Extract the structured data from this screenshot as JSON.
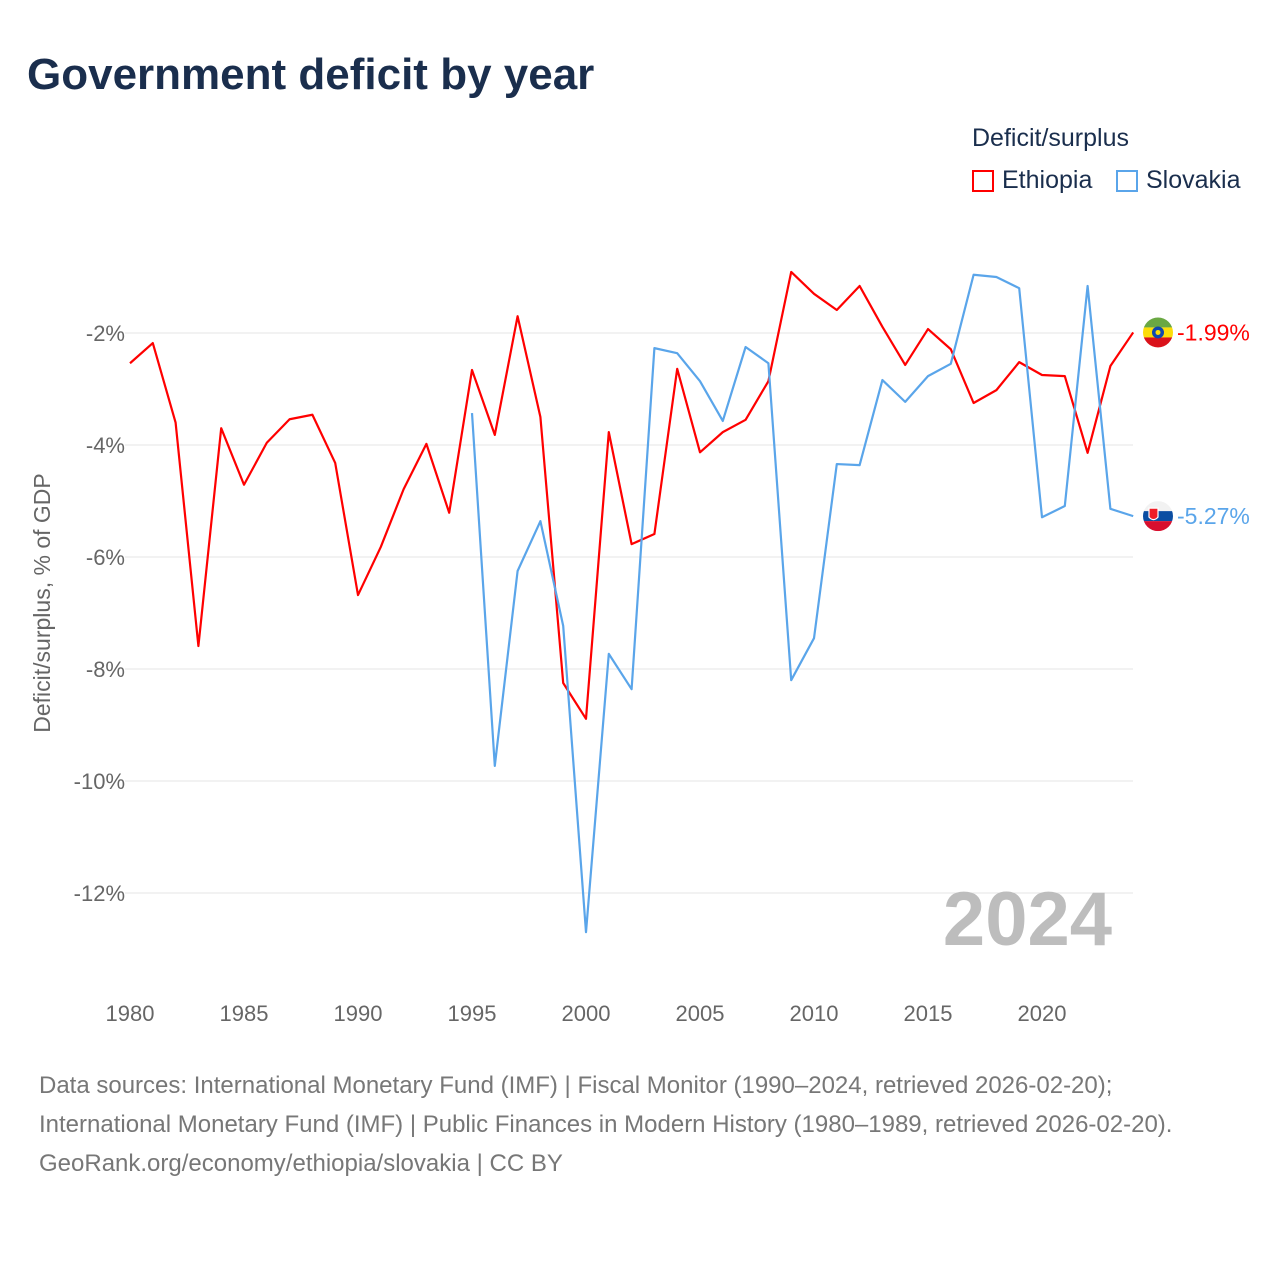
{
  "title": "Government deficit by year",
  "legend": {
    "title": "Deficit/surplus",
    "items": [
      {
        "label": "Ethiopia",
        "color": "#ff0000"
      },
      {
        "label": "Slovakia",
        "color": "#5aa5ea"
      }
    ]
  },
  "chart_data": {
    "type": "line",
    "title": "Government deficit by year",
    "ylabel": "Deficit/surplus, % of GDP",
    "xlabel": "",
    "xlim": [
      1980,
      2024
    ],
    "ylim": [
      -13.5,
      -0.5
    ],
    "x_ticks": [
      1980,
      1985,
      1990,
      1995,
      2000,
      2005,
      2010,
      2015,
      2020
    ],
    "y_ticks": [
      -2,
      -4,
      -6,
      -8,
      -10,
      -12
    ],
    "y_tick_labels": [
      "-2%",
      "-4%",
      "-6%",
      "-8%",
      "-10%",
      "-12%"
    ],
    "grid": true,
    "legend_position": "top-right",
    "year_watermark": "2024",
    "series": [
      {
        "name": "Ethiopia",
        "color": "#ff0000",
        "end_label": "-1.99%",
        "start_year": 1980,
        "values": [
          -2.54,
          -2.18,
          -3.6,
          -7.59,
          -3.7,
          -4.71,
          -3.96,
          -3.54,
          -3.46,
          -4.32,
          -6.68,
          -5.82,
          -4.79,
          -3.98,
          -5.21,
          -2.66,
          -3.82,
          -1.7,
          -3.5,
          -8.25,
          -8.89,
          -3.77,
          -5.77,
          -5.59,
          -2.64,
          -4.13,
          -3.77,
          -3.55,
          -2.86,
          -0.91,
          -1.3,
          -1.59,
          -1.16,
          -1.89,
          -2.57,
          -1.93,
          -2.29,
          -3.25,
          -3.02,
          -2.52,
          -2.75,
          -2.77,
          -4.14,
          -2.59,
          -1.99
        ]
      },
      {
        "name": "Slovakia",
        "color": "#5aa5ea",
        "end_label": "-5.27%",
        "start_year": 1995,
        "values": [
          -3.43,
          -9.73,
          -6.25,
          -5.36,
          -7.23,
          -12.7,
          -7.73,
          -8.36,
          -2.27,
          -2.36,
          -2.86,
          -3.57,
          -2.25,
          -2.54,
          -8.2,
          -7.45,
          -4.34,
          -4.36,
          -2.84,
          -3.23,
          -2.77,
          -2.55,
          -0.96,
          -1.0,
          -1.2,
          -5.29,
          -5.09,
          -1.16,
          -5.14,
          -5.27
        ]
      }
    ]
  },
  "footer": {
    "sources": "Data sources: International Monetary Fund (IMF) | Fiscal Monitor (1990–2024, retrieved 2026-02-20); International Monetary Fund (IMF) | Public Finances in Modern History (1980–1989, retrieved 2026-02-20).",
    "credit": "GeoRank.org/economy/ethiopia/slovakia | CC BY"
  }
}
